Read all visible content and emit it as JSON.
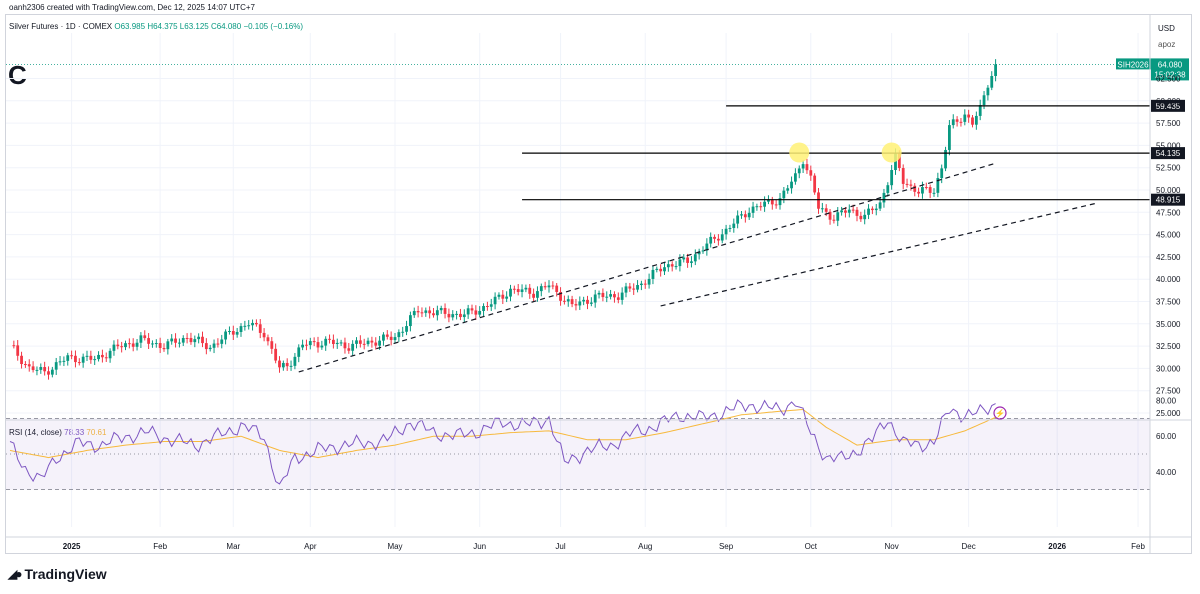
{
  "header": "oanh2306 created with TradingView.com, Dec 12, 2025 14:07 UTC+7",
  "symbol": {
    "name": "Silver Futures · 1D · COMEX",
    "open": "O63.985",
    "high": "H64.375",
    "low": "L63.125",
    "close": "C64.080",
    "change": "−0.105 (−0.16%)"
  },
  "annotation_letter": "C",
  "currency": "USD",
  "scale_mode": "apoz",
  "price_tag": {
    "ticker": "SIH2026",
    "price": "64.080",
    "countdown": "15:02:38"
  },
  "level_labels": [
    "59.435",
    "54.135",
    "48.915"
  ],
  "rsi_legend": {
    "label": "RSI (14, close)",
    "rsi": "78.33",
    "ma": "70.61"
  },
  "brand": "TradingView",
  "colors": {
    "up": "#089981",
    "down": "#f23645",
    "rsi": "#7e57c2",
    "rsi_ma": "#f7b93c",
    "highlight": "#fff176"
  },
  "chart_data": {
    "type": "candlestick",
    "title": "Silver Futures · 1D · COMEX",
    "ylabel": "USD",
    "ylim": [
      24.5,
      67
    ],
    "y_ticks": [
      "25.000",
      "27.500",
      "30.000",
      "32.500",
      "35.000",
      "37.500",
      "40.000",
      "42.500",
      "45.000",
      "47.500",
      "50.000",
      "52.500",
      "55.000",
      "57.500",
      "60.000",
      "62.500"
    ],
    "x_ticks": [
      "2025",
      "Feb",
      "Mar",
      "Apr",
      "May",
      "Jun",
      "Jul",
      "Aug",
      "Sep",
      "Oct",
      "Nov",
      "Dec",
      "2026",
      "Feb"
    ],
    "price_path": [
      [
        0,
        32.6
      ],
      [
        5,
        30.0
      ],
      [
        9,
        29.6
      ],
      [
        15,
        31.2
      ],
      [
        22,
        31.0
      ],
      [
        28,
        32.4
      ],
      [
        34,
        33.2
      ],
      [
        40,
        32.5
      ],
      [
        46,
        33.5
      ],
      [
        52,
        32.4
      ],
      [
        58,
        34.2
      ],
      [
        62,
        35.0
      ],
      [
        66,
        34.0
      ],
      [
        70,
        30.0
      ],
      [
        72,
        30.3
      ],
      [
        76,
        32.6
      ],
      [
        82,
        33.0
      ],
      [
        88,
        32.5
      ],
      [
        94,
        33.0
      ],
      [
        100,
        33.5
      ],
      [
        106,
        36.5
      ],
      [
        112,
        36.2
      ],
      [
        118,
        36.0
      ],
      [
        124,
        37.0
      ],
      [
        130,
        38.8
      ],
      [
        136,
        38.5
      ],
      [
        140,
        39.3
      ],
      [
        146,
        37.0
      ],
      [
        152,
        38.0
      ],
      [
        158,
        38.2
      ],
      [
        164,
        39.5
      ],
      [
        170,
        41.5
      ],
      [
        176,
        42.0
      ],
      [
        180,
        43.5
      ],
      [
        186,
        45.5
      ],
      [
        192,
        47.8
      ],
      [
        196,
        48.4
      ],
      [
        200,
        49.0
      ],
      [
        204,
        51.5
      ],
      [
        206,
        53.5
      ],
      [
        208,
        51.2
      ],
      [
        210,
        48.0
      ],
      [
        214,
        46.9
      ],
      [
        218,
        47.8
      ],
      [
        222,
        47.0
      ],
      [
        226,
        48.5
      ],
      [
        228,
        51.0
      ],
      [
        230,
        53.5
      ],
      [
        232,
        51.0
      ],
      [
        236,
        49.8
      ],
      [
        240,
        50.0
      ],
      [
        242,
        52.5
      ],
      [
        244,
        57.0
      ],
      [
        248,
        58.5
      ],
      [
        250,
        57.5
      ],
      [
        252,
        59.0
      ],
      [
        254,
        62.0
      ],
      [
        256,
        64.08
      ]
    ],
    "last_price": 64.08,
    "horizontal_levels": [
      59.435,
      54.135,
      48.915
    ],
    "trendlines": [
      {
        "from": [
          75,
          29.6
        ],
        "to": [
          256,
          53.0
        ]
      },
      {
        "from": [
          169,
          37.0
        ],
        "to": [
          282,
          48.5
        ]
      }
    ],
    "highlighted_highs": [
      [
        205,
        54.2
      ],
      [
        229,
        54.2
      ]
    ],
    "rsi": {
      "ylim": [
        28,
        85
      ],
      "ticks": [
        "40.00",
        "60.00",
        "80.00"
      ],
      "bands": [
        70,
        50,
        30
      ],
      "rsi_path": [
        [
          0,
          55
        ],
        [
          4,
          42
        ],
        [
          8,
          35
        ],
        [
          12,
          48
        ],
        [
          18,
          56
        ],
        [
          24,
          55
        ],
        [
          30,
          60
        ],
        [
          36,
          62
        ],
        [
          42,
          58
        ],
        [
          48,
          55
        ],
        [
          54,
          60
        ],
        [
          60,
          66
        ],
        [
          66,
          60
        ],
        [
          70,
          30
        ],
        [
          74,
          48
        ],
        [
          80,
          52
        ],
        [
          86,
          55
        ],
        [
          92,
          56
        ],
        [
          98,
          58
        ],
        [
          104,
          68
        ],
        [
          110,
          62
        ],
        [
          116,
          60
        ],
        [
          122,
          63
        ],
        [
          128,
          68
        ],
        [
          134,
          66
        ],
        [
          140,
          70
        ],
        [
          144,
          45
        ],
        [
          150,
          52
        ],
        [
          156,
          55
        ],
        [
          162,
          62
        ],
        [
          168,
          66
        ],
        [
          174,
          72
        ],
        [
          180,
          70
        ],
        [
          186,
          74
        ],
        [
          192,
          78
        ],
        [
          196,
          76
        ],
        [
          200,
          75
        ],
        [
          204,
          80
        ],
        [
          208,
          62
        ],
        [
          212,
          48
        ],
        [
          216,
          47
        ],
        [
          220,
          52
        ],
        [
          224,
          58
        ],
        [
          228,
          70
        ],
        [
          232,
          56
        ],
        [
          236,
          55
        ],
        [
          240,
          57
        ],
        [
          244,
          75
        ],
        [
          248,
          72
        ],
        [
          252,
          73
        ],
        [
          256,
          78.33
        ]
      ],
      "ma_path": [
        [
          0,
          52
        ],
        [
          10,
          48
        ],
        [
          20,
          52
        ],
        [
          30,
          55
        ],
        [
          40,
          57
        ],
        [
          50,
          57
        ],
        [
          60,
          60
        ],
        [
          70,
          52
        ],
        [
          80,
          48
        ],
        [
          90,
          52
        ],
        [
          100,
          55
        ],
        [
          110,
          60
        ],
        [
          120,
          60
        ],
        [
          130,
          62
        ],
        [
          140,
          63
        ],
        [
          150,
          58
        ],
        [
          160,
          58
        ],
        [
          170,
          62
        ],
        [
          180,
          67
        ],
        [
          190,
          72
        ],
        [
          200,
          74
        ],
        [
          206,
          75
        ],
        [
          212,
          65
        ],
        [
          220,
          55
        ],
        [
          230,
          58
        ],
        [
          240,
          58
        ],
        [
          248,
          63
        ],
        [
          256,
          70.61
        ]
      ]
    }
  }
}
